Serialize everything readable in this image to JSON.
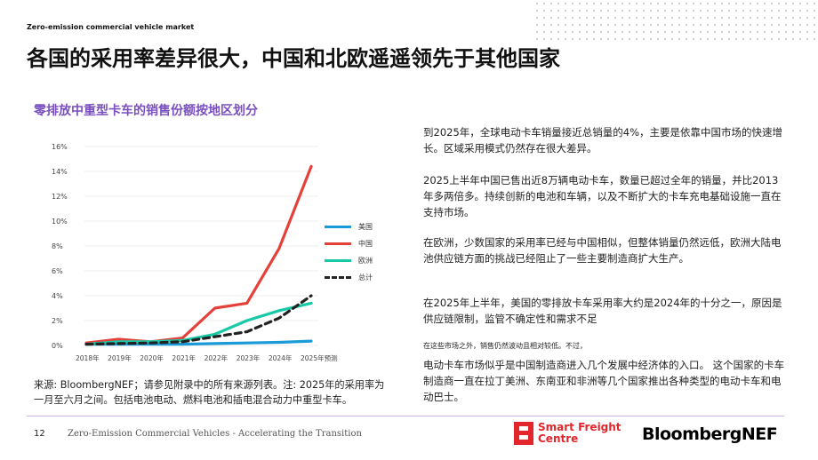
{
  "header": {
    "top_label": "Zero-emission commercial vehicle market",
    "title": "各国的采用率差异很大，中国和北欧遥遥领先于其他国家"
  },
  "chart_data": {
    "type": "line",
    "title": "零排放中重型卡车的销售份额按地区划分",
    "x": [
      "2018年",
      "2019年",
      "2020年",
      "2021年",
      "2022年",
      "2023年",
      "2024年",
      "2025年预测"
    ],
    "yticks": [
      "0%",
      "2%",
      "4%",
      "6%",
      "8%",
      "10%",
      "12%",
      "14%",
      "16%"
    ],
    "ylim": [
      0,
      16
    ],
    "legend_position": "right",
    "series": [
      {
        "name": "美国",
        "color": "#1a9ad6",
        "dash": false,
        "values": [
          0.1,
          0.1,
          0.1,
          0.1,
          0.15,
          0.2,
          0.25,
          0.35
        ]
      },
      {
        "name": "中国",
        "color": "#e5413b",
        "dash": false,
        "values": [
          0.2,
          0.5,
          0.3,
          0.6,
          3.0,
          3.4,
          7.8,
          14.4
        ]
      },
      {
        "name": "欧洲",
        "color": "#17c9a6",
        "dash": false,
        "values": [
          0.1,
          0.3,
          0.3,
          0.4,
          0.9,
          2.0,
          2.8,
          3.4
        ]
      },
      {
        "name": "总计",
        "color": "#222222",
        "dash": true,
        "values": [
          0.1,
          0.15,
          0.2,
          0.3,
          0.7,
          1.1,
          2.2,
          4.0
        ]
      }
    ]
  },
  "source_note": "来源: BloombergNEF；请参见附录中的所有来源列表。注: 2025年的采用率为一月至六月之间。包括电池电动、燃料电池和插电混合动力中重型卡车。",
  "paragraphs": [
    "到2025年，全球电动卡车销量接近总销量的4%，主要是依靠中国市场的快速增长。区域采用模式仍然存在很大差异。",
    "2025上半年中国已售出近8万辆电动卡车，数量已超过全年的销量，并比2013年多两倍多。持续创新的电池和车辆，以及不断扩大的卡车充电基础设施一直在支持市场。",
    "在欧洲，少数国家的采用率已经与中国相似，但整体销量仍然远低，欧洲大陆电池供应链方面的挑战已经阻止了一些主要制造商扩大生产。",
    "在2025年上半年，美国的零排放卡车采用率大约是2024年的十分之一，原因是供应链限制，监管不确定性和需求不足",
    "在这些市场之外，销售仍然波动且相对较低。不过，",
    "电动卡车市场似乎是中国制造商进入几个发展中经济体的入口。 这个国家的卡车制造商一直在拉丁美洲、东南亚和非洲等几个国家推出各种类型的电动卡车和电动巴士。"
  ],
  "footer": {
    "page_number": "12",
    "text": "Zero-Emission Commercial Vehicles - Accelerating the Transition",
    "logo_sfc_line1": "Smart Freight",
    "logo_sfc_line2": "Centre",
    "logo_bnef": "BloombergNEF"
  }
}
